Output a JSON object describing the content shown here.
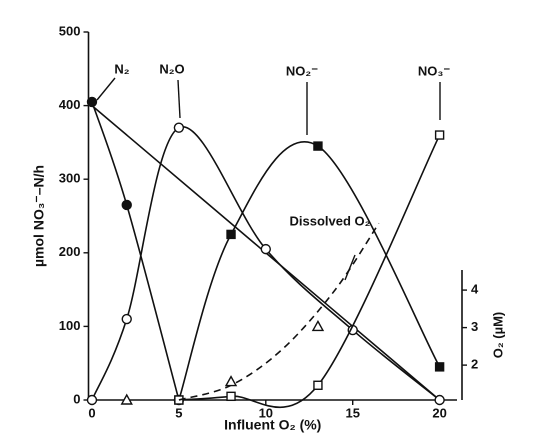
{
  "chart_data": {
    "type": "line",
    "xlabel": "Influent O₂ (%)",
    "ylabel": "µmol NO₃⁻–N/h",
    "y2label": "O₂ (µM)",
    "xlim": [
      -0.2,
      21
    ],
    "xticks": [
      0,
      5,
      10,
      15,
      20
    ],
    "ylim": [
      0,
      500
    ],
    "yticks": [
      0,
      100,
      200,
      300,
      400,
      500
    ],
    "y2lim": [
      1.07,
      10.88
    ],
    "y2ticks": [
      2,
      3,
      4
    ],
    "annotations": [
      "N₂",
      "N₂O",
      "NO₂⁻",
      "NO₃⁻",
      "Dissolved O₂"
    ],
    "series": [
      {
        "name": "N₂",
        "marker": "circle-filled",
        "line": "solid",
        "x": [
          0,
          2,
          5
        ],
        "values": [
          405,
          265,
          0
        ]
      },
      {
        "marker": "none",
        "line": "solid",
        "x": [
          0,
          10,
          20
        ],
        "values": [
          400,
          200,
          0
        ]
      },
      {
        "name": "N₂O",
        "marker": "circle-open",
        "line": "solid",
        "x": [
          0,
          2,
          5,
          10,
          15,
          20
        ],
        "values": [
          0,
          110,
          370,
          205,
          95,
          0
        ]
      },
      {
        "name": "NO₂⁻",
        "marker": "square-filled",
        "line": "solid",
        "x": [
          5,
          8,
          13,
          20
        ],
        "values": [
          0,
          225,
          345,
          45
        ]
      },
      {
        "name": "NO₃⁻",
        "marker": "square-open",
        "line": "solid",
        "x": [
          5,
          8,
          13,
          20
        ],
        "values": [
          0,
          5,
          20,
          360
        ]
      },
      {
        "name": "Dissolved O₂",
        "marker": "none",
        "line": "dashed",
        "x": [
          5,
          8,
          11,
          14,
          16.5
        ],
        "values": [
          0,
          20,
          70,
          150,
          240
        ]
      },
      {
        "marker": "triangle-open",
        "line": "none",
        "x": [
          2,
          8,
          13
        ],
        "values": [
          0,
          25,
          100
        ]
      }
    ]
  }
}
